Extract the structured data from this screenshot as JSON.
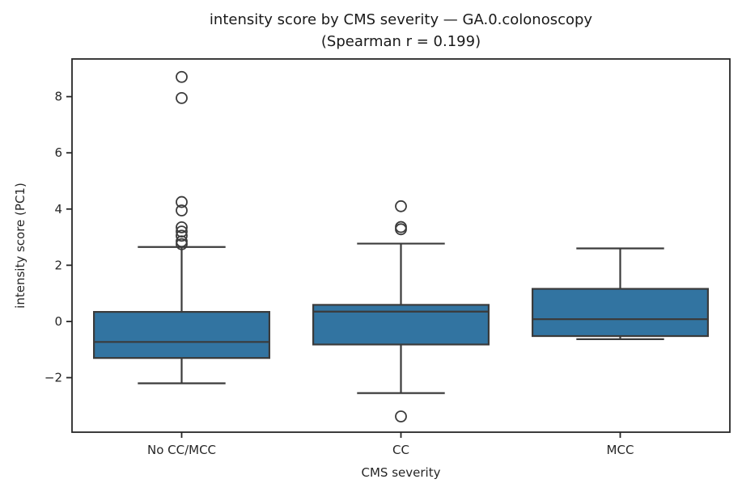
{
  "chart_data": {
    "type": "boxplot",
    "title": "intensity score by CMS severity — GA.0.colonoscopy",
    "subtitle": "(Spearman r = 0.199)",
    "xlabel": "CMS severity",
    "ylabel": "intensity score (PC1)",
    "categories": [
      "No CC/MCC",
      "CC",
      "MCC"
    ],
    "ylim": [
      -3.94,
      9.34
    ],
    "yticks": [
      {
        "value": 8,
        "label": "8"
      },
      {
        "value": 6,
        "label": "6"
      },
      {
        "value": 4,
        "label": "4"
      },
      {
        "value": 2,
        "label": "2"
      },
      {
        "value": 0,
        "label": "0"
      },
      {
        "value": -2,
        "label": "−2"
      }
    ],
    "grid": false,
    "legend": null,
    "box_fill_color": "#3274a1",
    "line_color": "#3b3b3b",
    "axis_color": "#262626",
    "series": [
      {
        "category": "No CC/MCC",
        "whisker_low": -2.2,
        "q1": -1.3,
        "median": -0.73,
        "q3": 0.34,
        "whisker_high": 2.65,
        "outliers": [
          8.7,
          7.95,
          4.25,
          3.95,
          3.35,
          3.2,
          3.05,
          2.85,
          2.75
        ]
      },
      {
        "category": "CC",
        "whisker_low": -2.55,
        "q1": -0.82,
        "median": 0.35,
        "q3": 0.59,
        "whisker_high": 2.77,
        "outliers": [
          4.1,
          3.36,
          3.28,
          -3.38
        ]
      },
      {
        "category": "MCC",
        "whisker_low": -0.63,
        "q1": -0.52,
        "median": 0.08,
        "q3": 1.16,
        "whisker_high": 2.6,
        "outliers": []
      }
    ]
  }
}
